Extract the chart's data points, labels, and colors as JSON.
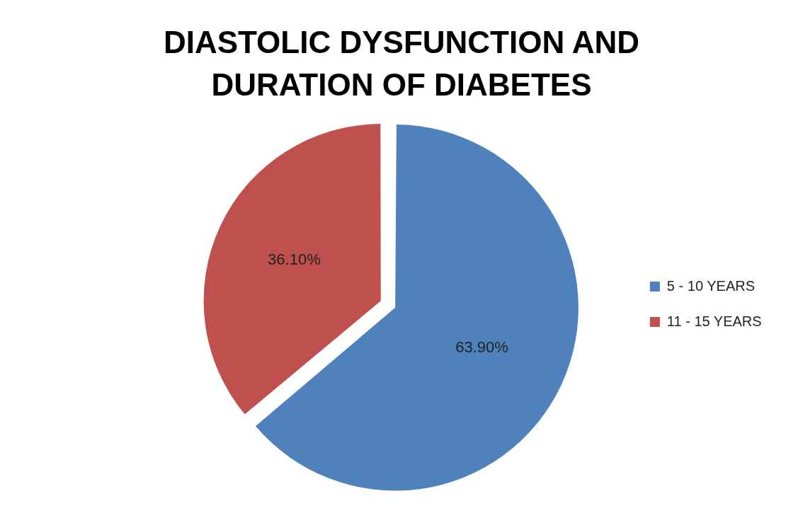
{
  "chart_data": {
    "type": "pie",
    "title": "DIASTOLIC DYSFUNCTION AND DURATION OF DIABETES",
    "categories": [
      "5 - 10 YEARS",
      "11 - 15 YEARS"
    ],
    "values": [
      63.9,
      36.1
    ],
    "colors": [
      "#4f81bd",
      "#c0504d"
    ],
    "value_labels": [
      "63.90%",
      "36.10%"
    ],
    "legend": "right"
  }
}
